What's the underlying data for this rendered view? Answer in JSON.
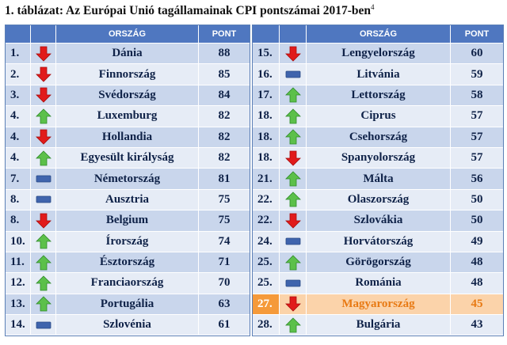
{
  "title": {
    "text": "1. táblázat: Az Európai Unió tagállamainak CPI pontszámai 2017-ben",
    "footnote": "4"
  },
  "columns": {
    "country": "ORSZÁG",
    "score": "PONT"
  },
  "colors": {
    "header": "#4f77c0",
    "row_dark": "#c9d6ec",
    "row_light": "#e6ecf6",
    "up": "#5cc04a",
    "down": "#e11b1b",
    "same": "#3f64ad",
    "highlight": "#fbd3aa",
    "highlight_text": "#e87a14"
  },
  "left_table": [
    {
      "rank": "1.",
      "trend": "down",
      "country": "Dánia",
      "score": "88"
    },
    {
      "rank": "2.",
      "trend": "down",
      "country": "Finnország",
      "score": "85"
    },
    {
      "rank": "3.",
      "trend": "down",
      "country": "Svédország",
      "score": "84"
    },
    {
      "rank": "4.",
      "trend": "up",
      "country": "Luxemburg",
      "score": "82"
    },
    {
      "rank": "4.",
      "trend": "down",
      "country": "Hollandia",
      "score": "82"
    },
    {
      "rank": "4.",
      "trend": "up",
      "country": "Egyesült királyság",
      "score": "82"
    },
    {
      "rank": "7.",
      "trend": "same",
      "country": "Németország",
      "score": "81"
    },
    {
      "rank": "8.",
      "trend": "same",
      "country": "Ausztria",
      "score": "75"
    },
    {
      "rank": "8.",
      "trend": "down",
      "country": "Belgium",
      "score": "75"
    },
    {
      "rank": "10.",
      "trend": "up",
      "country": "Írország",
      "score": "74"
    },
    {
      "rank": "11.",
      "trend": "up",
      "country": "Észtország",
      "score": "71"
    },
    {
      "rank": "12.",
      "trend": "up",
      "country": "Franciaország",
      "score": "70"
    },
    {
      "rank": "13.",
      "trend": "up",
      "country": "Portugália",
      "score": "63"
    },
    {
      "rank": "14.",
      "trend": "same",
      "country": "Szlovénia",
      "score": "61"
    }
  ],
  "right_table": [
    {
      "rank": "15.",
      "trend": "down",
      "country": "Lengyelország",
      "score": "60"
    },
    {
      "rank": "16.",
      "trend": "same",
      "country": "Litvánia",
      "score": "59"
    },
    {
      "rank": "17.",
      "trend": "up",
      "country": "Lettország",
      "score": "58"
    },
    {
      "rank": "18.",
      "trend": "up",
      "country": "Ciprus",
      "score": "57"
    },
    {
      "rank": "18.",
      "trend": "up",
      "country": "Csehország",
      "score": "57"
    },
    {
      "rank": "18.",
      "trend": "down",
      "country": "Spanyolország",
      "score": "57"
    },
    {
      "rank": "21.",
      "trend": "up",
      "country": "Málta",
      "score": "56"
    },
    {
      "rank": "22.",
      "trend": "up",
      "country": "Olaszország",
      "score": "50"
    },
    {
      "rank": "22.",
      "trend": "down",
      "country": "Szlovákia",
      "score": "50"
    },
    {
      "rank": "24.",
      "trend": "same",
      "country": "Horvátország",
      "score": "49"
    },
    {
      "rank": "25.",
      "trend": "up",
      "country": "Görögország",
      "score": "48"
    },
    {
      "rank": "25.",
      "trend": "same",
      "country": "Románia",
      "score": "48"
    },
    {
      "rank": "27.",
      "trend": "down",
      "country": "Magyarország",
      "score": "45",
      "highlight": true
    },
    {
      "rank": "28.",
      "trend": "up",
      "country": "Bulgária",
      "score": "43"
    }
  ]
}
